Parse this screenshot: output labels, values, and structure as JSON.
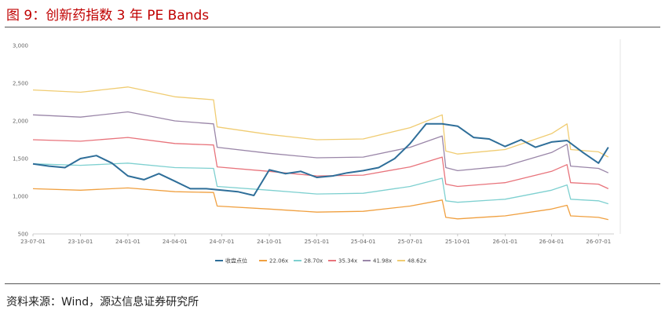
{
  "header": {
    "title": "图 9：创新药指数 3 年 PE Bands"
  },
  "footer": {
    "source": "资料来源：Wind，源达信息证券研究所"
  },
  "colors": {
    "index": "#2e6e99",
    "b1": "#f0a040",
    "b2": "#7ed0d0",
    "b3": "#e8737b",
    "b4": "#9a86a8",
    "b5": "#f0cc72",
    "title": "#c00000"
  },
  "chart_data": {
    "type": "line",
    "ylim": [
      500,
      3000
    ],
    "y_ticks": [
      500,
      1000,
      1500,
      2000,
      2500,
      3000
    ],
    "y_tick_labels": [
      "500",
      "1,000",
      "1,500",
      "2,000",
      "2,500",
      "3,000"
    ],
    "xlim": [
      "2023-07-01",
      "2026-07-31"
    ],
    "x_ticks": [
      "2023-07-01",
      "2023-10-01",
      "2024-01-01",
      "2024-04-01",
      "2024-07-01",
      "2024-10-01",
      "2025-01-01",
      "2025-04-01",
      "2025-07-01",
      "2025-10-01",
      "2026-01-01",
      "2026-04-01",
      "2026-07-01"
    ],
    "x_tick_labels": [
      "23-07-01",
      "23-10-01",
      "24-01-01",
      "24-04-01",
      "24-07-01",
      "24-10-01",
      "25-01-01",
      "25-04-01",
      "25-07-01",
      "25-10-01",
      "26-01-01",
      "26-04-01",
      "26-07-01"
    ],
    "legend_position": "bottom",
    "grid": false,
    "series": [
      {
        "name": "收盘点位",
        "x": [
          "2023-07-01",
          "2023-08-01",
          "2023-09-01",
          "2023-10-01",
          "2023-11-01",
          "2023-12-01",
          "2024-01-01",
          "2024-02-01",
          "2024-03-01",
          "2024-04-01",
          "2024-05-01",
          "2024-06-01",
          "2024-07-01",
          "2024-08-01",
          "2024-09-01",
          "2024-10-01",
          "2024-11-01",
          "2024-12-01",
          "2025-01-01",
          "2025-02-01",
          "2025-03-01",
          "2025-04-01",
          "2025-05-01",
          "2025-06-01",
          "2025-07-01",
          "2025-08-01",
          "2025-09-01",
          "2025-10-01",
          "2025-11-01",
          "2025-12-01",
          "2026-01-01",
          "2026-02-01",
          "2026-03-01",
          "2026-04-01",
          "2026-05-01",
          "2026-06-01",
          "2026-07-01",
          "2026-07-20"
        ],
        "values": [
          1430,
          1400,
          1380,
          1500,
          1540,
          1440,
          1270,
          1220,
          1300,
          1200,
          1100,
          1100,
          1080,
          1060,
          1010,
          1350,
          1300,
          1330,
          1250,
          1270,
          1310,
          1340,
          1380,
          1500,
          1700,
          1960,
          1960,
          1930,
          1780,
          1760,
          1660,
          1750,
          1650,
          1720,
          1740,
          1580,
          1440,
          1650
        ]
      },
      {
        "name": "22.06x",
        "x": [
          "2023-07-01",
          "2023-10-01",
          "2024-01-01",
          "2024-04-01",
          "2024-06-15",
          "2024-06-22",
          "2024-10-01",
          "2025-01-01",
          "2025-04-01",
          "2025-07-01",
          "2025-09-01",
          "2025-09-08",
          "2025-10-01",
          "2026-01-01",
          "2026-04-01",
          "2026-05-01",
          "2026-05-08",
          "2026-07-01",
          "2026-07-20"
        ],
        "values": [
          1100,
          1080,
          1110,
          1060,
          1050,
          870,
          830,
          790,
          800,
          870,
          950,
          720,
          700,
          740,
          830,
          880,
          740,
          720,
          690
        ]
      },
      {
        "name": "28.70x",
        "x": [
          "2023-07-01",
          "2023-10-01",
          "2024-01-01",
          "2024-04-01",
          "2024-06-15",
          "2024-06-22",
          "2024-10-01",
          "2025-01-01",
          "2025-04-01",
          "2025-07-01",
          "2025-09-01",
          "2025-09-08",
          "2025-10-01",
          "2026-01-01",
          "2026-04-01",
          "2026-05-01",
          "2026-05-08",
          "2026-07-01",
          "2026-07-20"
        ],
        "values": [
          1430,
          1410,
          1440,
          1380,
          1370,
          1130,
          1080,
          1030,
          1040,
          1130,
          1240,
          940,
          920,
          960,
          1080,
          1150,
          960,
          940,
          900
        ]
      },
      {
        "name": "35.34x",
        "x": [
          "2023-07-01",
          "2023-10-01",
          "2024-01-01",
          "2024-04-01",
          "2024-06-15",
          "2024-06-22",
          "2024-10-01",
          "2025-01-01",
          "2025-04-01",
          "2025-07-01",
          "2025-09-01",
          "2025-09-08",
          "2025-10-01",
          "2026-01-01",
          "2026-04-01",
          "2026-05-01",
          "2026-05-08",
          "2026-07-01",
          "2026-07-20"
        ],
        "values": [
          1750,
          1730,
          1780,
          1700,
          1680,
          1390,
          1330,
          1270,
          1280,
          1390,
          1520,
          1160,
          1130,
          1180,
          1330,
          1420,
          1180,
          1160,
          1100
        ]
      },
      {
        "name": "41.98x",
        "x": [
          "2023-07-01",
          "2023-10-01",
          "2024-01-01",
          "2024-04-01",
          "2024-06-15",
          "2024-06-22",
          "2024-10-01",
          "2025-01-01",
          "2025-04-01",
          "2025-07-01",
          "2025-09-01",
          "2025-09-08",
          "2025-10-01",
          "2026-01-01",
          "2026-04-01",
          "2026-05-01",
          "2026-05-08",
          "2026-07-01",
          "2026-07-20"
        ],
        "values": [
          2080,
          2050,
          2120,
          2000,
          1960,
          1650,
          1570,
          1510,
          1520,
          1650,
          1800,
          1380,
          1340,
          1400,
          1580,
          1690,
          1400,
          1370,
          1310
        ]
      },
      {
        "name": "48.62x",
        "x": [
          "2023-07-01",
          "2023-10-01",
          "2024-01-01",
          "2024-04-01",
          "2024-06-15",
          "2024-06-22",
          "2024-10-01",
          "2025-01-01",
          "2025-04-01",
          "2025-07-01",
          "2025-09-01",
          "2025-09-08",
          "2025-10-01",
          "2026-01-01",
          "2026-04-01",
          "2026-05-01",
          "2026-05-08",
          "2026-07-01",
          "2026-07-20"
        ],
        "values": [
          2410,
          2380,
          2450,
          2320,
          2280,
          1920,
          1820,
          1750,
          1760,
          1910,
          2080,
          1600,
          1560,
          1620,
          1830,
          1960,
          1620,
          1590,
          1520
        ]
      }
    ]
  }
}
